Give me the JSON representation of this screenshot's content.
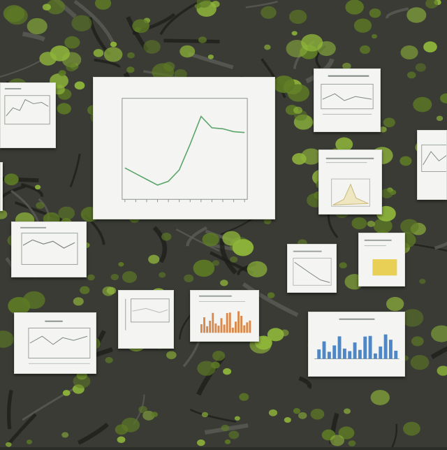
{
  "scene": {
    "description_note": "",
    "palette": {
      "moss_light": "#8fb63a",
      "moss_dark": "#5d7a25",
      "bark": "#3a3b35",
      "paper": "#f4f5f2",
      "line_green": "#5aa46a",
      "bar_blue": "#4f86c6",
      "bar_orange": "#d98a4e",
      "highlight_yellow": "#e8cf55"
    }
  },
  "main_chart": {
    "title": "",
    "tick_text": "",
    "line_color": "#5aa46a"
  },
  "chart_data": {
    "type": "line",
    "title": "",
    "xlabel": "",
    "ylabel": "",
    "x": [
      1,
      2,
      3,
      4,
      5,
      6,
      7,
      8,
      9,
      10,
      11,
      12
    ],
    "series": [
      {
        "values": [
          30,
          24,
          18,
          12,
          16,
          28,
          55,
          84,
          72,
          71,
          68,
          67
        ]
      }
    ],
    "ylim": [
      0,
      100
    ],
    "grid": false
  }
}
